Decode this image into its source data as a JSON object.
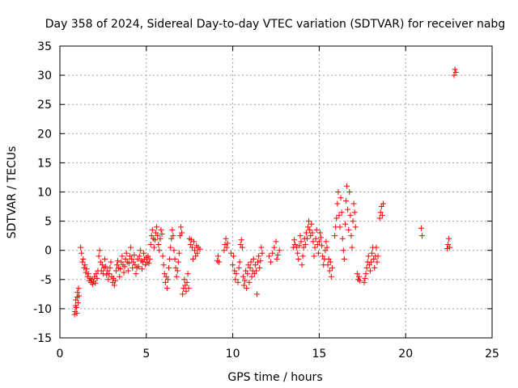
{
  "chart_data": {
    "type": "scatter",
    "title": "Day 358 of 2024, Sidereal Day-to-day VTEC variation (SDTVAR) for receiver nabg",
    "xlabel": "GPS time / hours",
    "ylabel": "SDTVAR / TECUs",
    "xlim": [
      0,
      25
    ],
    "ylim": [
      -15,
      35
    ],
    "xticks": [
      0,
      5,
      10,
      15,
      20,
      25
    ],
    "yticks": [
      -15,
      -10,
      -5,
      0,
      5,
      10,
      15,
      20,
      25,
      30,
      35
    ],
    "xtick_labels": [
      "0",
      "5",
      "10",
      "15",
      "20",
      "25"
    ],
    "ytick_labels": [
      "-15",
      "-10",
      "-5",
      "0",
      "5",
      "10",
      "15",
      "20",
      "25",
      "30",
      "35"
    ],
    "grid": true,
    "marker": "plus",
    "color": "#ff0000",
    "series": [
      {
        "name": "SDTVAR",
        "points": [
          [
            0.85,
            -11.0
          ],
          [
            0.88,
            -10.5
          ],
          [
            0.9,
            -9.5
          ],
          [
            0.92,
            -8.5
          ],
          [
            0.95,
            -9.8
          ],
          [
            0.98,
            -10.8
          ],
          [
            1.0,
            -8.0
          ],
          [
            1.02,
            -7.2
          ],
          [
            1.05,
            -9.0
          ],
          [
            1.08,
            -6.5
          ],
          [
            1.1,
            -7.8
          ],
          [
            1.2,
            0.5
          ],
          [
            1.25,
            -0.5
          ],
          [
            1.3,
            -2.0
          ],
          [
            1.35,
            -1.5
          ],
          [
            1.4,
            -3.0
          ],
          [
            1.45,
            -2.5
          ],
          [
            1.5,
            -3.8
          ],
          [
            1.55,
            -3.2
          ],
          [
            1.6,
            -4.5
          ],
          [
            1.65,
            -4.0
          ],
          [
            1.7,
            -5.2
          ],
          [
            1.75,
            -4.8
          ],
          [
            1.8,
            -5.5
          ],
          [
            1.85,
            -5.0
          ],
          [
            1.9,
            -5.8
          ],
          [
            1.95,
            -5.3
          ],
          [
            2.0,
            -4.5
          ],
          [
            2.05,
            -5.6
          ],
          [
            2.1,
            -4.0
          ],
          [
            2.15,
            -4.8
          ],
          [
            2.2,
            -3.5
          ],
          [
            2.25,
            -1.0
          ],
          [
            2.3,
            0.0
          ],
          [
            2.35,
            -2.0
          ],
          [
            2.4,
            -3.5
          ],
          [
            2.45,
            -2.5
          ],
          [
            2.5,
            -4.0
          ],
          [
            2.55,
            -3.0
          ],
          [
            2.6,
            -1.5
          ],
          [
            2.65,
            -2.8
          ],
          [
            2.7,
            -4.2
          ],
          [
            2.75,
            -3.5
          ],
          [
            2.8,
            -5.0
          ],
          [
            2.85,
            -4.0
          ],
          [
            2.9,
            -3.0
          ],
          [
            2.95,
            -2.0
          ],
          [
            3.0,
            -4.5
          ],
          [
            3.05,
            -5.5
          ],
          [
            3.1,
            -4.8
          ],
          [
            3.15,
            -6.0
          ],
          [
            3.2,
            -5.2
          ],
          [
            3.25,
            -3.5
          ],
          [
            3.3,
            -2.5
          ],
          [
            3.35,
            -1.8
          ],
          [
            3.4,
            -3.0
          ],
          [
            3.45,
            -4.5
          ],
          [
            3.5,
            -3.2
          ],
          [
            3.55,
            -2.0
          ],
          [
            3.6,
            -1.0
          ],
          [
            3.65,
            -2.5
          ],
          [
            3.7,
            -3.8
          ],
          [
            3.75,
            -2.8
          ],
          [
            3.8,
            -1.5
          ],
          [
            3.85,
            -0.5
          ],
          [
            3.9,
            -2.0
          ],
          [
            3.95,
            -3.5
          ],
          [
            4.0,
            -2.2
          ],
          [
            4.05,
            -1.0
          ],
          [
            4.1,
            0.5
          ],
          [
            4.15,
            -1.5
          ],
          [
            4.2,
            -3.0
          ],
          [
            4.25,
            -2.0
          ],
          [
            4.3,
            -0.8
          ],
          [
            4.35,
            -2.5
          ],
          [
            4.4,
            -4.0
          ],
          [
            4.45,
            -3.0
          ],
          [
            4.5,
            -1.5
          ],
          [
            4.55,
            -2.8
          ],
          [
            4.6,
            -1.0
          ],
          [
            4.65,
            0.0
          ],
          [
            4.7,
            -1.8
          ],
          [
            4.75,
            -3.2
          ],
          [
            4.8,
            -2.0
          ],
          [
            4.85,
            -0.5
          ],
          [
            4.9,
            -1.5
          ],
          [
            4.95,
            -2.5
          ],
          [
            5.0,
            -1.2
          ],
          [
            5.05,
            -2.0
          ],
          [
            5.1,
            -1.0
          ],
          [
            5.15,
            -2.2
          ],
          [
            5.2,
            -1.5
          ],
          [
            5.25,
            1.0
          ],
          [
            5.3,
            2.5
          ],
          [
            5.35,
            3.5
          ],
          [
            5.4,
            2.0
          ],
          [
            5.45,
            0.5
          ],
          [
            5.5,
            1.8
          ],
          [
            5.55,
            3.0
          ],
          [
            5.6,
            4.0
          ],
          [
            5.65,
            2.5
          ],
          [
            5.7,
            1.0
          ],
          [
            5.75,
            0.0
          ],
          [
            5.8,
            2.0
          ],
          [
            5.85,
            3.5
          ],
          [
            5.9,
            2.8
          ],
          [
            5.95,
            -1.0
          ],
          [
            6.0,
            -2.5
          ],
          [
            6.05,
            -4.0
          ],
          [
            6.1,
            -5.5
          ],
          [
            6.15,
            -4.5
          ],
          [
            6.2,
            -6.5
          ],
          [
            6.25,
            -5.0
          ],
          [
            6.3,
            -3.0
          ],
          [
            6.35,
            -1.5
          ],
          [
            6.4,
            0.5
          ],
          [
            6.45,
            2.0
          ],
          [
            6.5,
            3.5
          ],
          [
            6.55,
            2.5
          ],
          [
            6.6,
            0.0
          ],
          [
            6.65,
            -1.5
          ],
          [
            6.7,
            -3.0
          ],
          [
            6.75,
            -4.5
          ],
          [
            6.8,
            -3.5
          ],
          [
            6.85,
            -2.0
          ],
          [
            6.9,
            -0.5
          ],
          [
            6.95,
            2.5
          ],
          [
            7.0,
            4.0
          ],
          [
            7.05,
            3.0
          ],
          [
            7.1,
            -7.5
          ],
          [
            7.15,
            -6.5
          ],
          [
            7.2,
            -5.0
          ],
          [
            7.25,
            -6.0
          ],
          [
            7.3,
            -7.0
          ],
          [
            7.35,
            -5.5
          ],
          [
            7.4,
            -4.0
          ],
          [
            7.45,
            -6.5
          ],
          [
            7.5,
            2.0
          ],
          [
            7.55,
            1.0
          ],
          [
            7.6,
            1.8
          ],
          [
            7.65,
            0.5
          ],
          [
            7.7,
            -1.5
          ],
          [
            7.75,
            1.5
          ],
          [
            7.8,
            0.0
          ],
          [
            7.85,
            -1.0
          ],
          [
            7.9,
            0.8
          ],
          [
            7.95,
            -0.5
          ],
          [
            8.0,
            0.5
          ],
          [
            8.1,
            0.2
          ],
          [
            9.1,
            -1.8
          ],
          [
            9.15,
            -1.0
          ],
          [
            9.2,
            -2.0
          ],
          [
            9.5,
            0.0
          ],
          [
            9.55,
            1.0
          ],
          [
            9.6,
            2.0
          ],
          [
            9.65,
            0.5
          ],
          [
            9.7,
            1.2
          ],
          [
            9.9,
            -0.5
          ],
          [
            10.0,
            -2.5
          ],
          [
            10.05,
            -1.0
          ],
          [
            10.1,
            -3.5
          ],
          [
            10.15,
            -5.0
          ],
          [
            10.2,
            -4.0
          ],
          [
            10.3,
            -5.5
          ],
          [
            10.35,
            -3.0
          ],
          [
            10.4,
            -2.0
          ],
          [
            10.45,
            1.0
          ],
          [
            10.5,
            1.8
          ],
          [
            10.55,
            0.5
          ],
          [
            10.6,
            -4.5
          ],
          [
            10.65,
            -6.0
          ],
          [
            10.7,
            -5.2
          ],
          [
            10.75,
            -3.5
          ],
          [
            10.8,
            -6.5
          ],
          [
            10.85,
            -4.0
          ],
          [
            10.9,
            -2.5
          ],
          [
            10.95,
            -5.5
          ],
          [
            11.0,
            -3.0
          ],
          [
            11.05,
            -2.0
          ],
          [
            11.1,
            -4.5
          ],
          [
            11.15,
            -3.5
          ],
          [
            11.2,
            -1.5
          ],
          [
            11.25,
            -4.0
          ],
          [
            11.3,
            -2.5
          ],
          [
            11.35,
            -3.5
          ],
          [
            11.4,
            -7.5
          ],
          [
            11.45,
            -2.0
          ],
          [
            11.5,
            -1.0
          ],
          [
            11.55,
            -3.0
          ],
          [
            11.6,
            -1.8
          ],
          [
            11.65,
            0.5
          ],
          [
            11.7,
            -0.5
          ],
          [
            12.1,
            -1.0
          ],
          [
            12.2,
            -2.0
          ],
          [
            12.3,
            -0.5
          ],
          [
            12.4,
            0.5
          ],
          [
            12.5,
            1.5
          ],
          [
            12.55,
            -1.5
          ],
          [
            12.6,
            -0.8
          ],
          [
            12.7,
            0.0
          ],
          [
            13.5,
            0.5
          ],
          [
            13.55,
            1.8
          ],
          [
            13.6,
            1.0
          ],
          [
            13.7,
            0.5
          ],
          [
            13.75,
            -0.5
          ],
          [
            13.8,
            -1.5
          ],
          [
            13.85,
            0.8
          ],
          [
            13.9,
            2.5
          ],
          [
            13.95,
            1.5
          ],
          [
            14.0,
            -2.5
          ],
          [
            14.05,
            -1.0
          ],
          [
            14.1,
            0.5
          ],
          [
            14.15,
            2.0
          ],
          [
            14.2,
            1.0
          ],
          [
            14.25,
            3.0
          ],
          [
            14.3,
            2.0
          ],
          [
            14.35,
            4.0
          ],
          [
            14.4,
            5.0
          ],
          [
            14.45,
            3.5
          ],
          [
            14.5,
            2.5
          ],
          [
            14.55,
            4.5
          ],
          [
            14.6,
            3.0
          ],
          [
            14.65,
            1.5
          ],
          [
            14.7,
            -1.0
          ],
          [
            14.75,
            0.5
          ],
          [
            14.8,
            2.0
          ],
          [
            14.85,
            3.5
          ],
          [
            14.9,
            1.0
          ],
          [
            14.95,
            -0.5
          ],
          [
            15.0,
            1.5
          ],
          [
            15.05,
            3.0
          ],
          [
            15.1,
            2.2
          ],
          [
            15.15,
            0.8
          ],
          [
            15.2,
            -1.0
          ],
          [
            15.25,
            -2.5
          ],
          [
            15.3,
            -1.5
          ],
          [
            15.35,
            0.0
          ],
          [
            15.4,
            1.5
          ],
          [
            15.45,
            0.5
          ],
          [
            15.5,
            -2.5
          ],
          [
            15.55,
            -1.5
          ],
          [
            15.6,
            -3.5
          ],
          [
            15.65,
            -2.0
          ],
          [
            15.7,
            -4.5
          ],
          [
            15.75,
            -3.0
          ],
          [
            15.9,
            2.5
          ],
          [
            15.95,
            4.0
          ],
          [
            16.0,
            5.5
          ],
          [
            16.05,
            8.0
          ],
          [
            16.1,
            10.0
          ],
          [
            16.15,
            6.0
          ],
          [
            16.2,
            4.0
          ],
          [
            16.25,
            9.0
          ],
          [
            16.3,
            6.5
          ],
          [
            16.35,
            2.0
          ],
          [
            16.4,
            0.0
          ],
          [
            16.45,
            -1.5
          ],
          [
            16.5,
            4.5
          ],
          [
            16.55,
            8.5
          ],
          [
            16.6,
            11.0
          ],
          [
            16.65,
            7.0
          ],
          [
            16.7,
            3.5
          ],
          [
            16.75,
            10.0
          ],
          [
            16.8,
            6.0
          ],
          [
            16.85,
            2.5
          ],
          [
            16.9,
            0.5
          ],
          [
            16.95,
            5.0
          ],
          [
            17.0,
            8.0
          ],
          [
            17.05,
            6.5
          ],
          [
            17.1,
            4.0
          ],
          [
            17.2,
            -4.0
          ],
          [
            17.25,
            -5.0
          ],
          [
            17.3,
            -4.5
          ],
          [
            17.35,
            -5.2
          ],
          [
            17.6,
            -5.5
          ],
          [
            17.65,
            -4.8
          ],
          [
            17.7,
            -4.0
          ],
          [
            17.75,
            -3.0
          ],
          [
            17.8,
            -2.0
          ],
          [
            17.85,
            -1.0
          ],
          [
            17.9,
            -2.5
          ],
          [
            17.95,
            -3.5
          ],
          [
            18.0,
            -2.0
          ],
          [
            18.05,
            -0.5
          ],
          [
            18.1,
            0.5
          ],
          [
            18.15,
            -1.5
          ],
          [
            18.2,
            -3.0
          ],
          [
            18.25,
            -1.0
          ],
          [
            18.3,
            0.5
          ],
          [
            18.35,
            -2.0
          ],
          [
            18.4,
            -1.0
          ],
          [
            18.5,
            5.5
          ],
          [
            18.55,
            6.5
          ],
          [
            18.6,
            7.5
          ],
          [
            18.65,
            6.0
          ],
          [
            18.7,
            8.0
          ],
          [
            20.9,
            3.8
          ],
          [
            20.95,
            2.5
          ],
          [
            22.4,
            0.3
          ],
          [
            22.45,
            1.0
          ],
          [
            22.5,
            2.0
          ],
          [
            22.55,
            0.5
          ],
          [
            22.8,
            30.0
          ],
          [
            22.85,
            31.0
          ],
          [
            22.9,
            30.5
          ]
        ]
      }
    ]
  }
}
